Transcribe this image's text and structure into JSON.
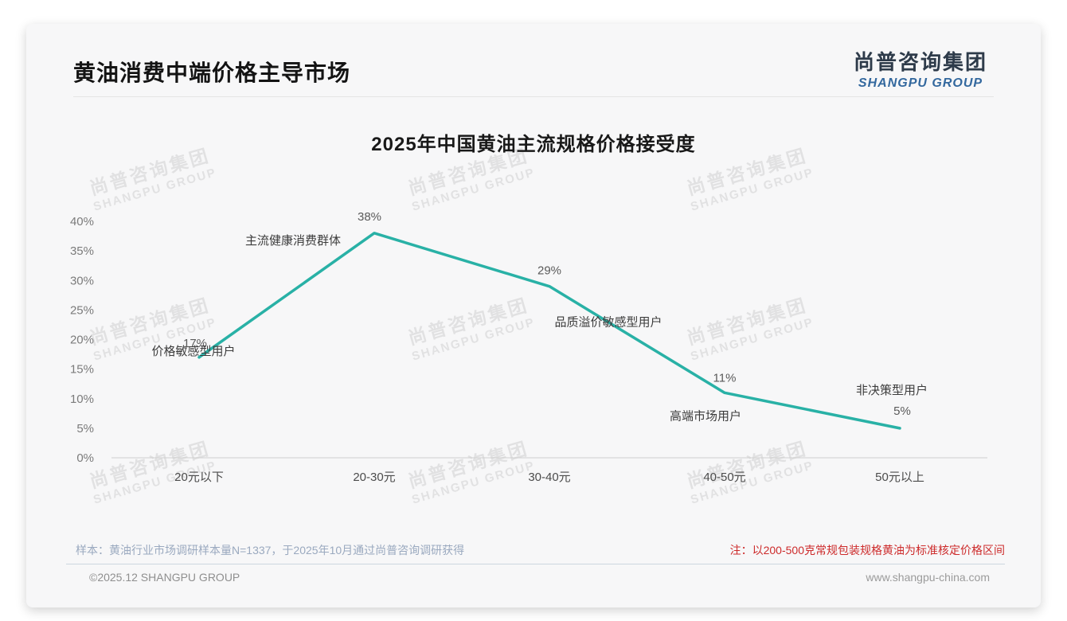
{
  "page": {
    "title": "黄油消费中端价格主导市场",
    "logo": {
      "cn": "尚普咨询集团",
      "en": "SHANGPU GROUP"
    },
    "watermark": {
      "cn": "尚普咨询集团",
      "en": "SHANGPU GROUP"
    },
    "footnote_left": "样本：黄油行业市场调研样本量N=1337，于2025年10月通过尚普咨询调研获得",
    "footnote_right": "注：以200-500克常规包装规格黄油为标准核定价格区间",
    "footer_left": "©2025.12 SHANGPU GROUP",
    "footer_right": "www.shangpu-china.com"
  },
  "chart_data": {
    "type": "line",
    "title": "2025年中国黄油主流规格价格接受度",
    "categories": [
      "20元以下",
      "20-30元",
      "30-40元",
      "40-50元",
      "50元以上"
    ],
    "values": [
      17,
      38,
      29,
      11,
      5
    ],
    "data_labels": [
      "17%",
      "38%",
      "29%",
      "11%",
      "5%"
    ],
    "point_annotations": [
      "价格敏感型用户",
      "主流健康消费群体",
      "品质溢价敏感型用户",
      "高端市场用户",
      "非决策型用户"
    ],
    "xlabel": "",
    "ylabel": "",
    "ylim": [
      0,
      40
    ],
    "y_tick_step": 5,
    "y_tick_labels": [
      "0%",
      "5%",
      "10%",
      "15%",
      "20%",
      "25%",
      "30%",
      "35%",
      "40%"
    ],
    "grid": false,
    "legend": "none",
    "line_color": "#29B1A6"
  },
  "colors": {
    "line_teal": "#29B1A6",
    "note_red": "#CD2B2B",
    "logo_blue": "#33689E",
    "logo_dark": "#2E3B4A",
    "card_background": "#F7F7F8"
  }
}
